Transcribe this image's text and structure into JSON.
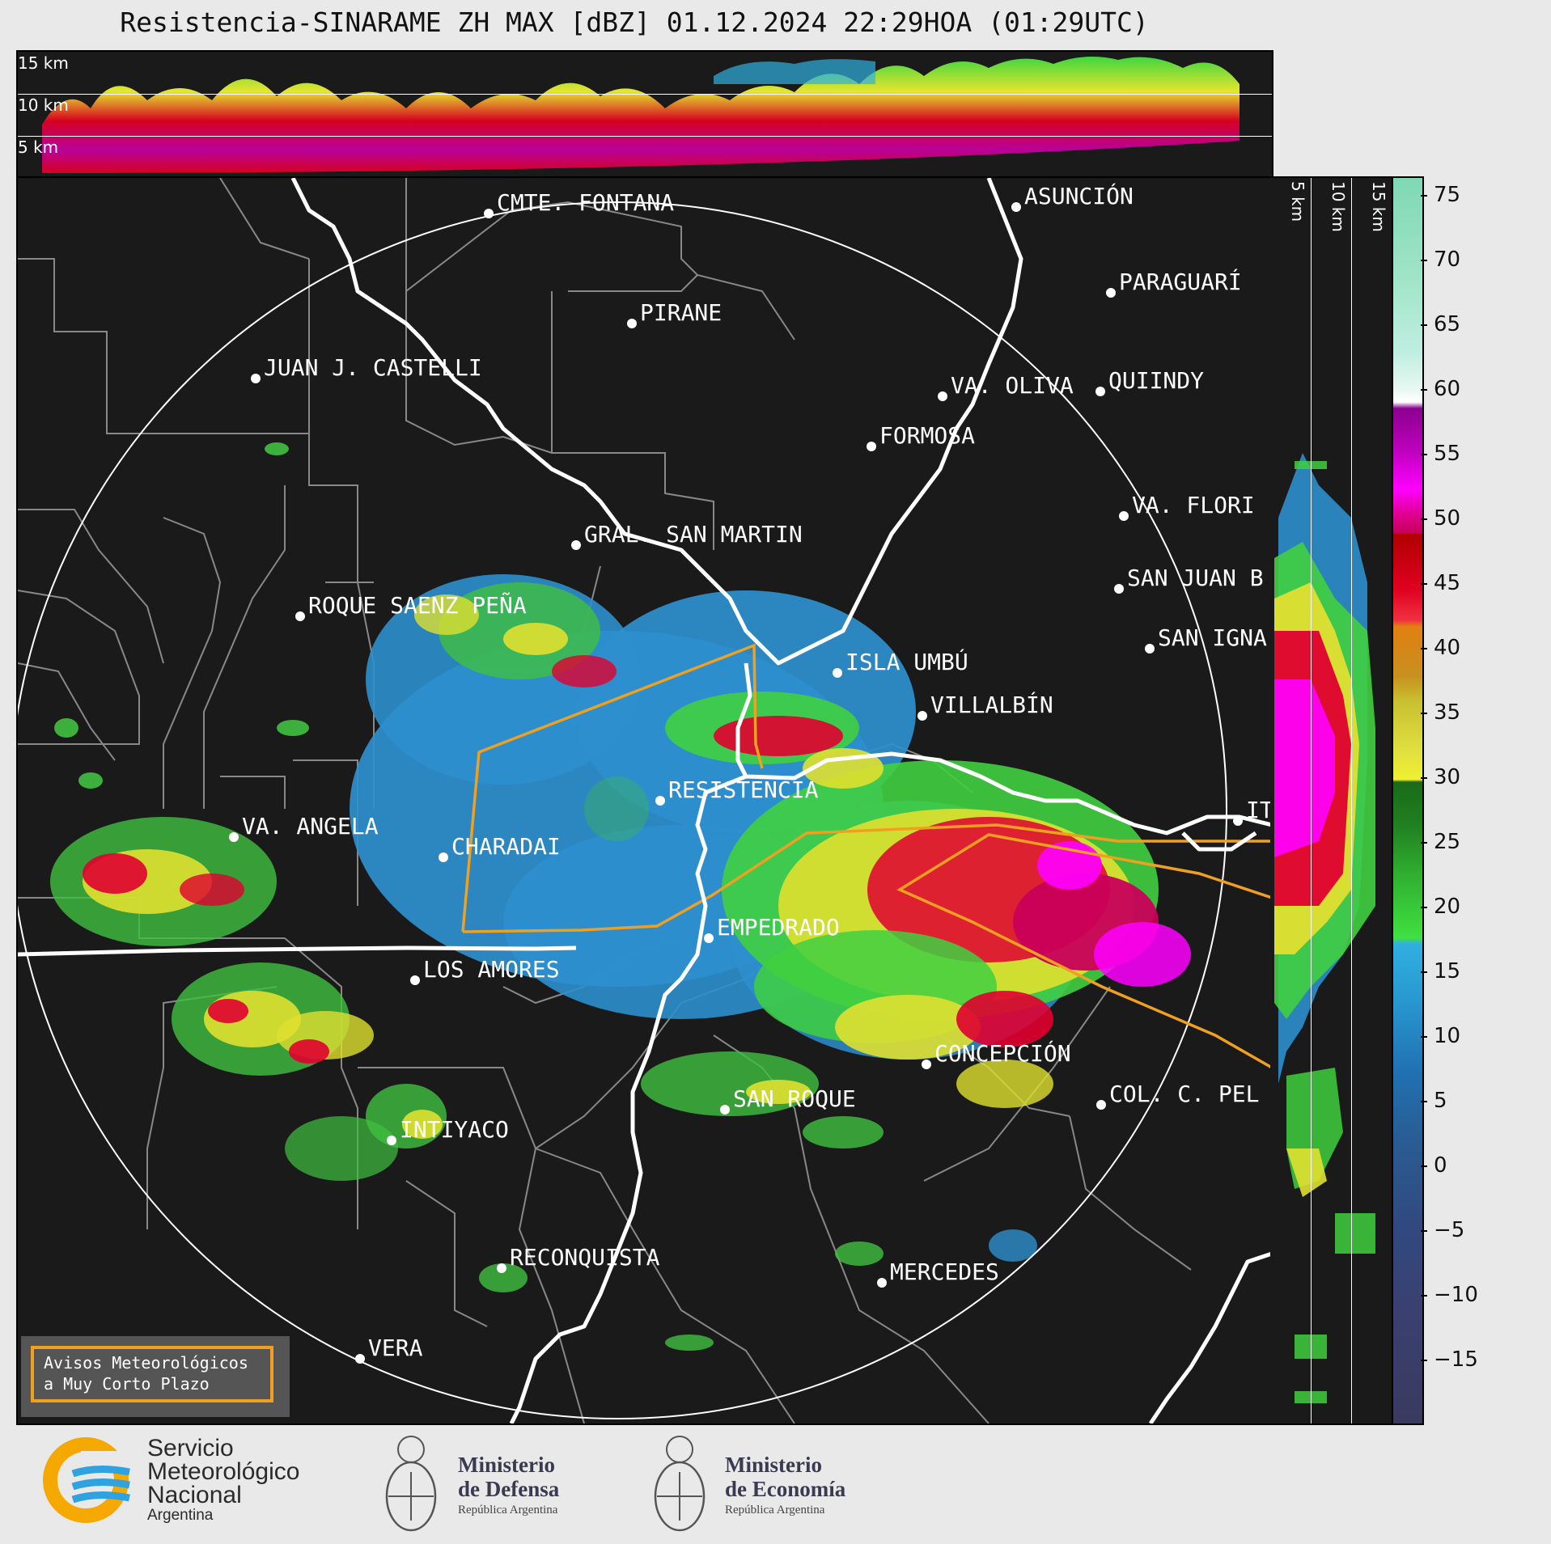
{
  "title": "Resistencia-SINARAME ZH MAX [dBZ] 01.12.2024 22:29HOA (01:29UTC)",
  "top_panel": {
    "height_labels": [
      "15 km",
      "10 km",
      "5 km"
    ]
  },
  "side_panel": {
    "height_labels": [
      "5 km",
      "10 km",
      "15 km"
    ]
  },
  "colorbar": {
    "unit": "dBZ",
    "ticks": [
      "75",
      "70",
      "65",
      "60",
      "55",
      "50",
      "45",
      "40",
      "35",
      "30",
      "25",
      "20",
      "15",
      "10",
      "5",
      "0",
      "−5",
      "−10",
      "−15"
    ],
    "colors": {
      "75": "#7fd8b4",
      "65": "#bfeee0",
      "60": "#ffffff",
      "55": "#ff00ff",
      "50": "#c8005a",
      "45": "#e00020",
      "40": "#e08010",
      "35": "#c8c030",
      "30": "#f0f030",
      "25": "#208020",
      "20": "#40e040",
      "15": "#30b0e0",
      "10": "#2070b0",
      "0": "#2a5a90",
      "-10": "#3a4070",
      "-15": "#3a3a60"
    }
  },
  "places": [
    {
      "name": "CMTE. FONTANA"
    },
    {
      "name": "ASUNCIÓN"
    },
    {
      "name": "PIRANE"
    },
    {
      "name": "PARAGUARÍ"
    },
    {
      "name": "JUAN J. CASTELLI"
    },
    {
      "name": "VA. OLIVA"
    },
    {
      "name": "QUIINDY"
    },
    {
      "name": "FORMOSA"
    },
    {
      "name": "VA. FLORI"
    },
    {
      "name": "GRAL. SAN MARTIN"
    },
    {
      "name": "SAN JUAN B"
    },
    {
      "name": "ROQUE SAENZ PEÑA"
    },
    {
      "name": "SAN IGNA"
    },
    {
      "name": "ISLA UMBÚ"
    },
    {
      "name": "VILLALBÍN"
    },
    {
      "name": "RESISTENCIA"
    },
    {
      "name": "VA. ANGELA"
    },
    {
      "name": "CHARADAI"
    },
    {
      "name": "IT"
    },
    {
      "name": "EMPEDRADO"
    },
    {
      "name": "LOS AMORES"
    },
    {
      "name": "CONCEPCIÓN"
    },
    {
      "name": "SAN ROQUE"
    },
    {
      "name": "COL. C. PEL"
    },
    {
      "name": "INTIYACO"
    },
    {
      "name": "RECONQUISTA"
    },
    {
      "name": "MERCEDES"
    },
    {
      "name": "VERA"
    }
  ],
  "notice": {
    "line1": "Avisos Meteorológicos",
    "line2": "a Muy Corto Plazo"
  },
  "logos": {
    "smn": {
      "line1": "Servicio",
      "line2": "Meteorológico",
      "line3": "Nacional",
      "line4": "Argentina"
    },
    "defensa": {
      "line1": "Ministerio",
      "line2": "de Defensa",
      "line3": "República Argentina"
    },
    "economia": {
      "line1": "Ministerio",
      "line2": "de Economía",
      "line3": "República Argentina"
    }
  }
}
